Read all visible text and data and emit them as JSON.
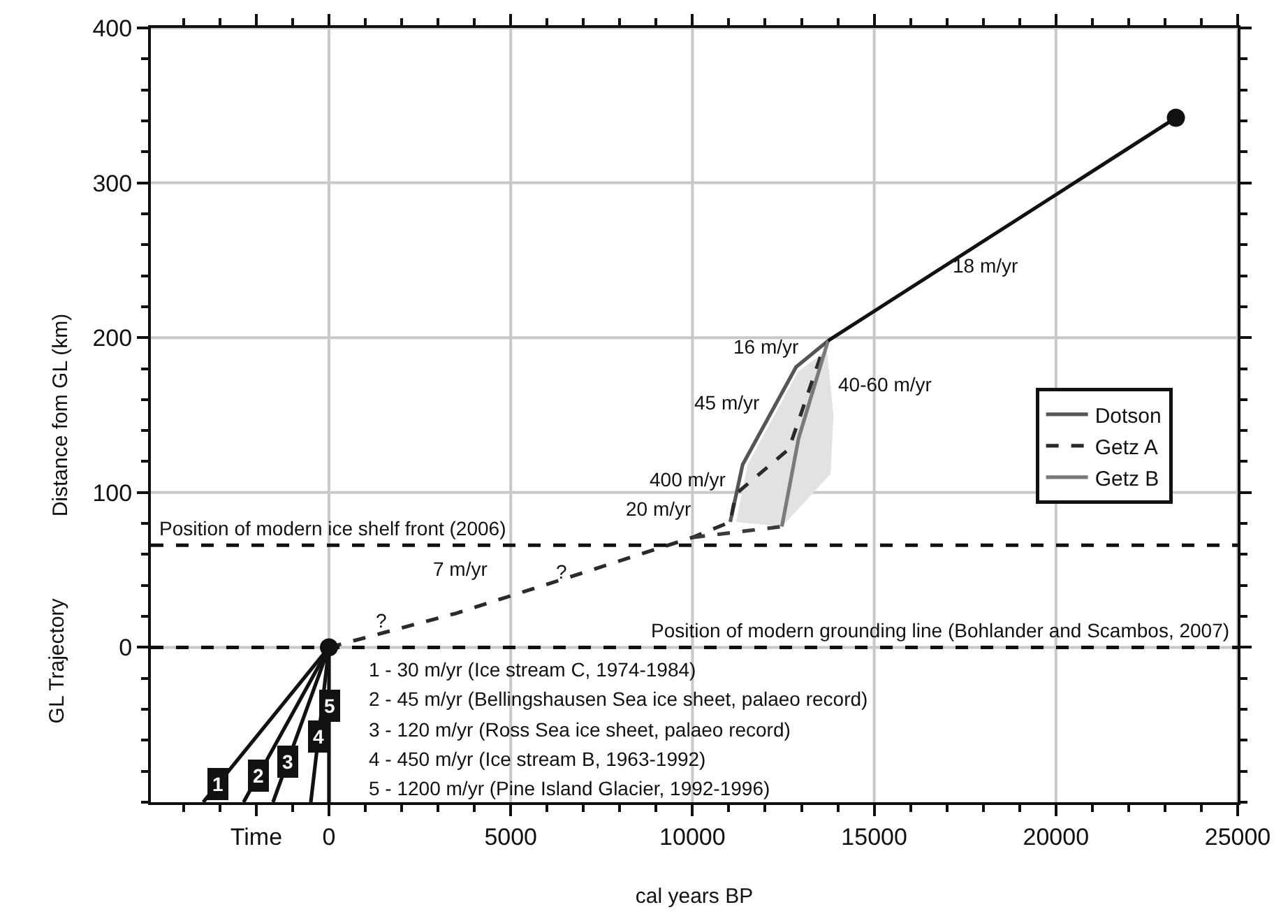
{
  "chart_data": {
    "type": "line",
    "xlabel": "cal years BP",
    "ylabel": "Distance fom GL (km)",
    "xlim": [
      -4900,
      25000
    ],
    "ylim": [
      -100,
      400
    ],
    "xticks": [
      {
        "value": -2000,
        "label": "Time"
      },
      0,
      5000,
      10000,
      15000,
      20000,
      25000
    ],
    "yticks": [
      0,
      100,
      200,
      300,
      400
    ],
    "grid": true,
    "legend": "right",
    "line_style": "solid",
    "marker": "none",
    "series": [
      {
        "type": "area",
        "color": "#e2e2e2",
        "x": [
          11200,
          11520,
          12900,
          13700,
          13880,
          13800,
          12460,
          11200
        ],
        "values": [
          81,
          118,
          178,
          192,
          150,
          112,
          78,
          81
        ]
      },
      {
        "name": "Dotson",
        "color": "#555555",
        "x": [
          11040,
          11380,
          12850,
          13730
        ],
        "values": [
          81,
          118,
          181,
          198
        ]
      },
      {
        "name": "Getz A",
        "color": "#2a2a2a",
        "line_style": "dashed",
        "x": [
          0,
          3500,
          6300,
          10000,
          11040,
          11190,
          12650,
          12960,
          13540,
          13730
        ],
        "values": [
          0,
          22,
          43,
          71,
          81,
          99,
          128,
          149,
          189,
          198
        ]
      },
      {
        "name": "Getz B",
        "color": "#7a7a7a",
        "x": [
          12460,
          12920,
          13730
        ],
        "values": [
          78,
          135,
          198
        ]
      },
      {
        "color": "#3a3a3a",
        "line_style": "dashed",
        "x": [
          10000,
          12460
        ],
        "values": [
          71,
          78
        ]
      },
      {
        "color": "#111111",
        "x": [
          13730,
          23300
        ],
        "values": [
          198,
          342
        ]
      },
      {
        "type": "scatter",
        "marker": "circle",
        "color": "#111111",
        "x": [
          0,
          23300
        ],
        "values": [
          0,
          342
        ]
      },
      {
        "color": "#111111",
        "x": [
          0,
          -3045,
          -3460
        ],
        "values": [
          0,
          -88,
          -100
        ]
      },
      {
        "color": "#111111",
        "x": [
          0,
          -1950,
          -2350
        ],
        "values": [
          0,
          -83,
          -100
        ]
      },
      {
        "color": "#111111",
        "x": [
          0,
          -1140,
          -1540
        ],
        "values": [
          0,
          -74,
          -100
        ]
      },
      {
        "color": "#111111",
        "x": [
          0,
          -290,
          -500
        ],
        "values": [
          0,
          -58,
          -100
        ]
      },
      {
        "color": "#111111",
        "x": [
          0,
          0,
          0
        ],
        "values": [
          0,
          -38,
          -100
        ]
      }
    ],
    "ref_lines": [
      {
        "axis": "y",
        "value": 66,
        "label": "Position of modern ice shelf front (2006)",
        "color": "#111111",
        "line_style": "dashed"
      },
      {
        "axis": "y",
        "value": 0,
        "label": "Position of modern grounding line (Bohlander and Scambos, 2007)",
        "color": "#111111",
        "line_style": "dashed"
      }
    ],
    "annotations": [
      "GL Trajectory",
      "1 - 30 m/yr (Ice stream C, 1974-1984)",
      "2 - 45 m/yr (Bellingshausen Sea ice sheet, palaeo record)",
      "3 - 120 m/yr (Ross Sea ice sheet, palaeo record)",
      "4 - 450 m/yr (Ice stream B, 1963-1992)",
      "5 - 1200 m/yr (Pine Island Glacier, 1992-1996)",
      "18 m/yr",
      "16 m/yr",
      "45 m/yr",
      "40-60 m/yr",
      "400 m/yr",
      "20 m/yr",
      "7 m/yr",
      "?",
      "?",
      {
        "text": "1",
        "x": -3045,
        "y": -88
      },
      {
        "text": "2",
        "x": -1950,
        "y": -83
      },
      {
        "text": "3",
        "x": -1140,
        "y": -74
      },
      {
        "text": "4",
        "x": -290,
        "y": -58
      },
      {
        "text": "5",
        "x": 0,
        "y": -38
      }
    ]
  }
}
